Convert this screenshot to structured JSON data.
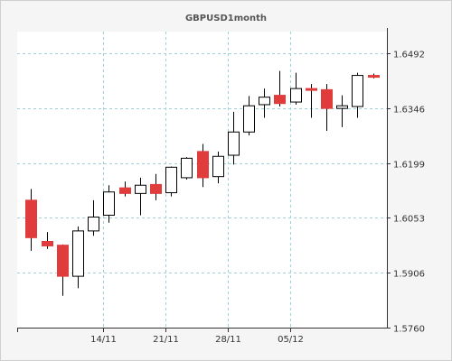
{
  "chart_data": {
    "type": "candlestick",
    "title": "GBPUSD1month",
    "xlabel": "",
    "ylabel": "",
    "ylim": [
      1.576,
      1.655
    ],
    "y_ticks": [
      "1.6492",
      "1.6346",
      "1.6199",
      "1.6053",
      "1.5906",
      "1.5760"
    ],
    "y_tick_values": [
      1.6492,
      1.6346,
      1.6199,
      1.6053,
      1.5906,
      1.576
    ],
    "x_ticks": [
      "14/11",
      "21/11",
      "28/11",
      "05/12"
    ],
    "x_tick_index": [
      4.65,
      8.65,
      12.65,
      16.65
    ],
    "grid": true,
    "colors": {
      "up_body": "#ffffff",
      "down_body": "#e03c3c",
      "wick": "#000000",
      "grid": "#9fd0da",
      "plot_bg": "#ffffff",
      "outside_bg": "#f5f5f5"
    },
    "candles": [
      {
        "open": 1.61,
        "high": 1.613,
        "low": 1.5965,
        "close": 1.6
      },
      {
        "open": 1.599,
        "high": 1.6015,
        "low": 1.597,
        "close": 1.5978
      },
      {
        "open": 1.598,
        "high": 1.5982,
        "low": 1.5845,
        "close": 1.5897
      },
      {
        "open": 1.5897,
        "high": 1.603,
        "low": 1.5865,
        "close": 1.6018
      },
      {
        "open": 1.6018,
        "high": 1.61,
        "low": 1.6005,
        "close": 1.6055
      },
      {
        "open": 1.606,
        "high": 1.614,
        "low": 1.604,
        "close": 1.6122
      },
      {
        "open": 1.6133,
        "high": 1.615,
        "low": 1.611,
        "close": 1.6118
      },
      {
        "open": 1.6118,
        "high": 1.616,
        "low": 1.606,
        "close": 1.614
      },
      {
        "open": 1.6142,
        "high": 1.617,
        "low": 1.61,
        "close": 1.6118
      },
      {
        "open": 1.612,
        "high": 1.619,
        "low": 1.611,
        "close": 1.6188
      },
      {
        "open": 1.616,
        "high": 1.6215,
        "low": 1.6155,
        "close": 1.6212
      },
      {
        "open": 1.623,
        "high": 1.625,
        "low": 1.6135,
        "close": 1.616
      },
      {
        "open": 1.6163,
        "high": 1.623,
        "low": 1.6145,
        "close": 1.6217
      },
      {
        "open": 1.622,
        "high": 1.6336,
        "low": 1.6195,
        "close": 1.6282
      },
      {
        "open": 1.6282,
        "high": 1.6378,
        "low": 1.6273,
        "close": 1.6352
      },
      {
        "open": 1.6355,
        "high": 1.6398,
        "low": 1.632,
        "close": 1.6375
      },
      {
        "open": 1.638,
        "high": 1.6445,
        "low": 1.635,
        "close": 1.6358
      },
      {
        "open": 1.6362,
        "high": 1.644,
        "low": 1.6355,
        "close": 1.6398
      },
      {
        "open": 1.6398,
        "high": 1.641,
        "low": 1.632,
        "close": 1.6395
      },
      {
        "open": 1.6395,
        "high": 1.641,
        "low": 1.6285,
        "close": 1.6345
      },
      {
        "open": 1.6345,
        "high": 1.638,
        "low": 1.6295,
        "close": 1.6352
      },
      {
        "open": 1.635,
        "high": 1.644,
        "low": 1.632,
        "close": 1.6433
      },
      {
        "open": 1.6433,
        "high": 1.6438,
        "low": 1.6425,
        "close": 1.643
      }
    ]
  }
}
